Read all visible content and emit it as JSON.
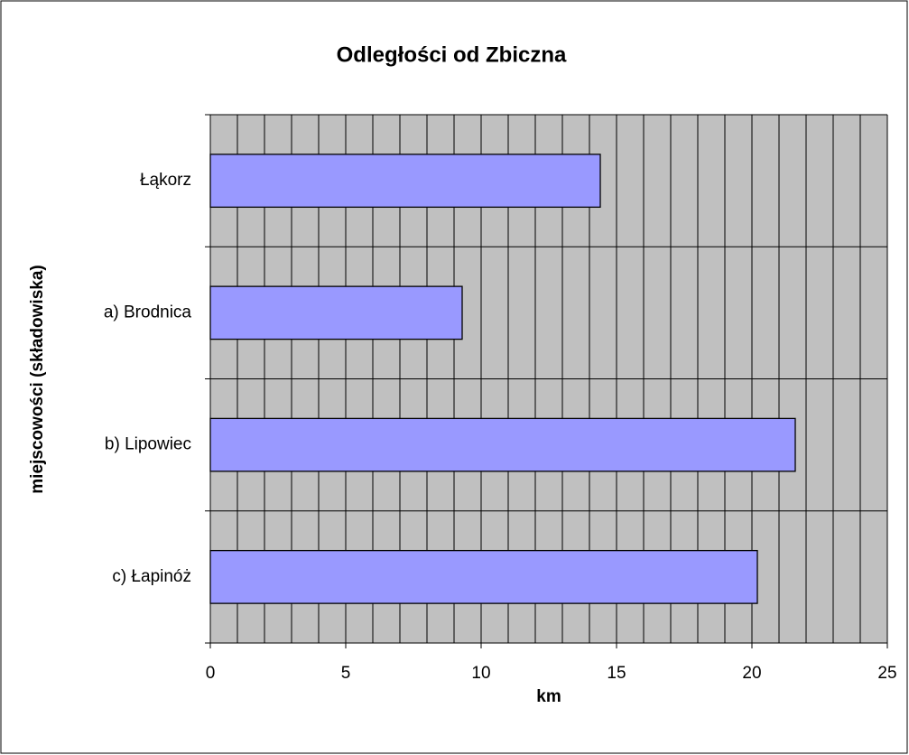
{
  "chart_data": {
    "type": "bar",
    "orientation": "horizontal",
    "title": "Odległości od Zbiczna",
    "x_label": "km",
    "y_label": "miejscowości (składowiska)",
    "categories": [
      "Łąkorz",
      "a) Brodnica",
      "b) Lipowiec",
      "c) Łapinóż"
    ],
    "values": [
      14.4,
      9.3,
      21.6,
      20.2
    ],
    "color": "#9999ff",
    "background": "#c0c0c0",
    "xlim": [
      0,
      25
    ],
    "xticks": [
      0,
      5,
      10,
      15,
      20,
      25
    ],
    "minor_xticks": [
      0,
      1,
      2,
      3,
      4,
      5,
      6,
      7,
      8,
      9,
      10,
      11,
      12,
      13,
      14,
      15,
      16,
      17,
      18,
      19,
      20,
      21,
      22,
      23,
      24,
      25
    ],
    "grid": true
  }
}
